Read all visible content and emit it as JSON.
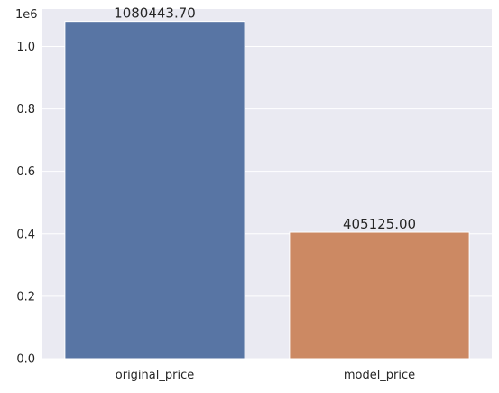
{
  "chart_data": {
    "type": "bar",
    "categories": [
      "original_price",
      "model_price"
    ],
    "values": [
      1080443.7,
      405125.0
    ],
    "data_labels": [
      "1080443.70",
      "405125.00"
    ],
    "bar_colors": [
      "#5875a4",
      "#cc8963"
    ],
    "ylim": [
      0,
      1120000
    ],
    "yticks": [
      0,
      200000,
      400000,
      600000,
      800000,
      1000000
    ],
    "ytick_labels": [
      "0.0",
      "0.2",
      "0.4",
      "0.6",
      "0.8",
      "1.0"
    ],
    "y_offset_label": "1e6",
    "xlabel": "",
    "ylabel": "",
    "grid": true,
    "background": "#eaeaf2",
    "grid_color": "#ffffff"
  }
}
